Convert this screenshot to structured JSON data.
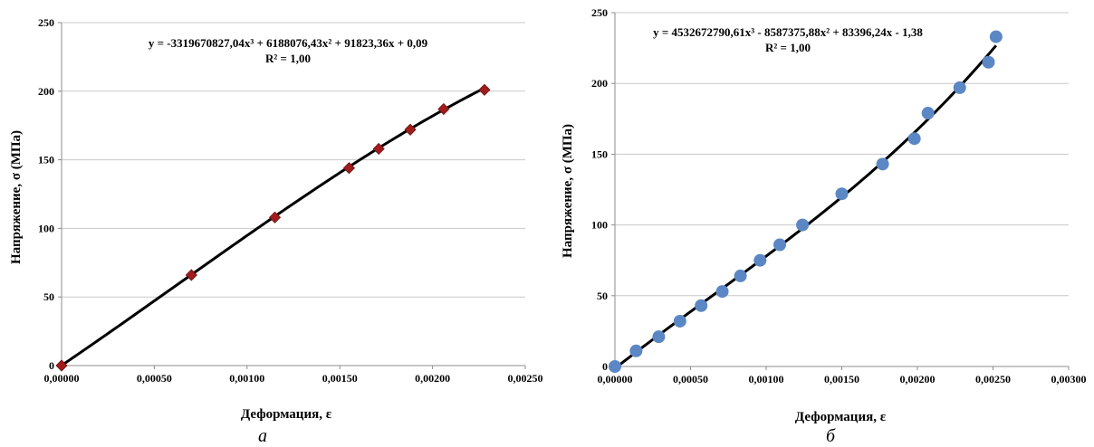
{
  "chart_data": [
    {
      "type": "scatter",
      "panel_label": "а",
      "xlabel": "Деформация, ε",
      "ylabel": "Напряжение, σ (МПа)",
      "xlim": [
        0,
        0.0025
      ],
      "ylim": [
        0,
        250
      ],
      "x_ticks": [
        "0,00000",
        "0,00050",
        "0,00100",
        "0,00150",
        "0,00200",
        "0,00250"
      ],
      "y_ticks": [
        "0",
        "50",
        "100",
        "150",
        "200",
        "250"
      ],
      "grid": "horizontal",
      "marker": "diamond",
      "marker_color": "#a01d1d",
      "trend_color": "#000000",
      "trendline": {
        "equation": "y = -3319670827,04x³ + 6188076,43x² + 91823,36x + 0,09",
        "r2": "R² = 1,00",
        "coefficients": [
          -3319670827.04,
          6188076.43,
          91823.36,
          0.09
        ]
      },
      "points": {
        "x": [
          0.0,
          0.0007,
          0.00115,
          0.00155,
          0.00171,
          0.00188,
          0.00206,
          0.00228
        ],
        "y": [
          0,
          66,
          108,
          144,
          158,
          172,
          187,
          201
        ]
      }
    },
    {
      "type": "scatter",
      "panel_label": "б",
      "xlabel": "Деформация, ε",
      "ylabel": "Напряжение, σ (МПа)",
      "xlim": [
        0,
        0.003
      ],
      "ylim": [
        0,
        250
      ],
      "x_ticks": [
        "0,00000",
        "0,00050",
        "0,00100",
        "0,00150",
        "0,00200",
        "0,00250",
        "0,00300"
      ],
      "y_ticks": [
        "0",
        "50",
        "100",
        "150",
        "200",
        "250"
      ],
      "grid": "horizontal",
      "marker": "circle",
      "marker_color": "#5b87c4",
      "trend_color": "#000000",
      "trendline": {
        "equation": "y = 4532672790,61x³ - 8587375,88x² + 83396,24x - 1,38",
        "r2": "R² = 1,00",
        "coefficients": [
          4532672790.61,
          -8587375.88,
          83396.24,
          -1.38
        ]
      },
      "points": {
        "x": [
          0.0,
          0.00014,
          0.00029,
          0.00043,
          0.00057,
          0.00071,
          0.00083,
          0.00096,
          0.00109,
          0.00124,
          0.0015,
          0.00177,
          0.00198,
          0.00207,
          0.00228,
          0.00247,
          0.00252
        ],
        "y": [
          0,
          11,
          21,
          32,
          43,
          53,
          64,
          75,
          86,
          100,
          122,
          143,
          161,
          179,
          197,
          215,
          233
        ]
      }
    }
  ]
}
